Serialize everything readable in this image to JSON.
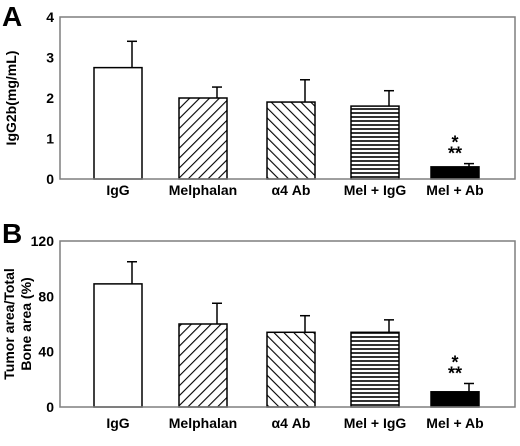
{
  "chart_data": [
    {
      "type": "bar",
      "panel_label": "A",
      "ylabel": "IgG2b(mg/mL)",
      "ylabel_lines": [
        "IgG2b(mg/mL)"
      ],
      "ylim": [
        0,
        4
      ],
      "yticks": [
        "0",
        "1",
        "2",
        "3",
        "4"
      ],
      "categories": [
        "IgG",
        "Melphalan",
        "α4 Ab",
        "Mel + IgG",
        "Mel + Ab"
      ],
      "values": [
        2.75,
        2.0,
        1.9,
        1.8,
        0.3
      ],
      "errors": [
        0.65,
        0.27,
        0.55,
        0.38,
        0.08
      ],
      "fills": [
        "empty",
        "hatch-back",
        "hatch-fwd",
        "hatch-horiz",
        "solid"
      ],
      "annotations": [
        {
          "category": "Mel + Ab",
          "lines": [
            "*",
            "**"
          ]
        }
      ],
      "grid": false,
      "legend": "none"
    },
    {
      "type": "bar",
      "panel_label": "B",
      "ylabel": "Tumor area/Total Bone area (%)",
      "ylabel_lines": [
        "Tumor area/Total",
        "Bone area (%)"
      ],
      "ylim": [
        0,
        120
      ],
      "yticks": [
        "0",
        "40",
        "80",
        "120"
      ],
      "categories": [
        "IgG",
        "Melphalan",
        "α4 Ab",
        "Mel + IgG",
        "Mel + Ab"
      ],
      "values": [
        89,
        60,
        54,
        54,
        11
      ],
      "errors": [
        16,
        15,
        12,
        9,
        6
      ],
      "fills": [
        "empty",
        "hatch-back",
        "hatch-fwd",
        "hatch-horiz",
        "solid"
      ],
      "annotations": [
        {
          "category": "Mel + Ab",
          "lines": [
            "*",
            "**"
          ]
        }
      ],
      "grid": false,
      "legend": "none"
    }
  ]
}
